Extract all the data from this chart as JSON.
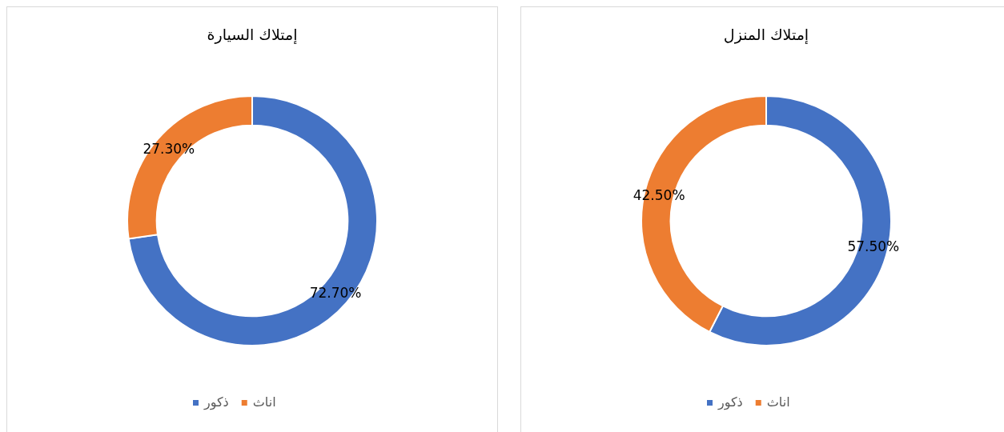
{
  "chart_data": [
    {
      "type": "donut",
      "title": "إمتلاك السيارة",
      "categories": [
        "ذكور",
        "اناث"
      ],
      "values": [
        72.7,
        27.3
      ],
      "colors": [
        "#4472c4",
        "#ed7d31"
      ],
      "value_labels": [
        "72.70%",
        "27.30%"
      ],
      "legend": "bottom"
    },
    {
      "type": "donut",
      "title": "إمتلاك المنزل",
      "categories": [
        "ذكور",
        "اناث"
      ],
      "values": [
        57.5,
        42.5
      ],
      "colors": [
        "#4472c4",
        "#ed7d31"
      ],
      "value_labels": [
        "57.50%",
        "42.50%"
      ],
      "legend": "bottom"
    }
  ]
}
